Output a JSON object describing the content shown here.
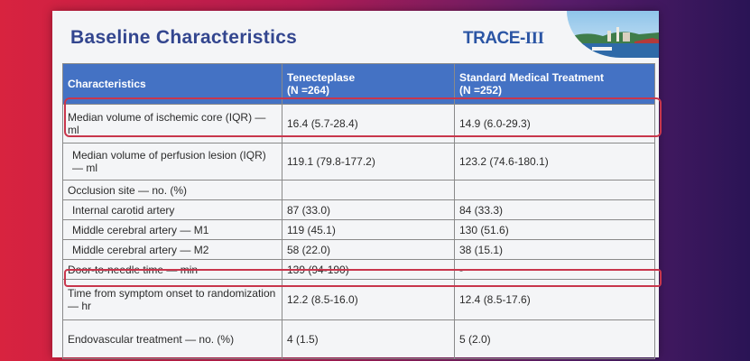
{
  "slide": {
    "title": "Baseline Characteristics",
    "logo_text_main": "TRACE-",
    "logo_text_roman": "III"
  },
  "table": {
    "headers": [
      {
        "line1": "Characteristics",
        "line2": ""
      },
      {
        "line1": "Tenecteplase",
        "line2": "(N =264)"
      },
      {
        "line1": "Standard Medical Treatment",
        "line2": "(N =252)"
      }
    ],
    "rows": [
      {
        "label": "Median volume of ischemic core (IQR) — ml",
        "tnk": "16.4 (5.7-28.4)",
        "smt": "14.9 (6.0-29.3)"
      },
      {
        "label": "Median volume of perfusion lesion (IQR) — ml",
        "tnk": "119.1 (79.8-177.2)",
        "smt": "123.2 (74.6-180.1)"
      },
      {
        "label": "Occlusion site — no. (%)",
        "tnk": "",
        "smt": ""
      },
      {
        "label": "Internal carotid artery",
        "tnk": "87 (33.0)",
        "smt": "84 (33.3)"
      },
      {
        "label": "Middle cerebral artery — M1",
        "tnk": "119 (45.1)",
        "smt": "130 (51.6)"
      },
      {
        "label": "Middle cerebral artery — M2",
        "tnk": "58 (22.0)",
        "smt": "38 (15.1)"
      },
      {
        "label": "Door-to-needle time — min",
        "tnk": "139 (94-190)",
        "smt": "-"
      },
      {
        "label": "Time from symptom onset to randomization — hr",
        "tnk": "12.2 (8.5-16.0)",
        "smt": "12.4 (8.5-17.6)"
      },
      {
        "label": "Endovascular treatment — no. (%)",
        "tnk": "4 (1.5)",
        "smt": "5 (2.0)"
      }
    ]
  },
  "colors": {
    "header_bg": "#4472c4",
    "title_color": "#33468f",
    "highlight_border": "#c8364c"
  }
}
